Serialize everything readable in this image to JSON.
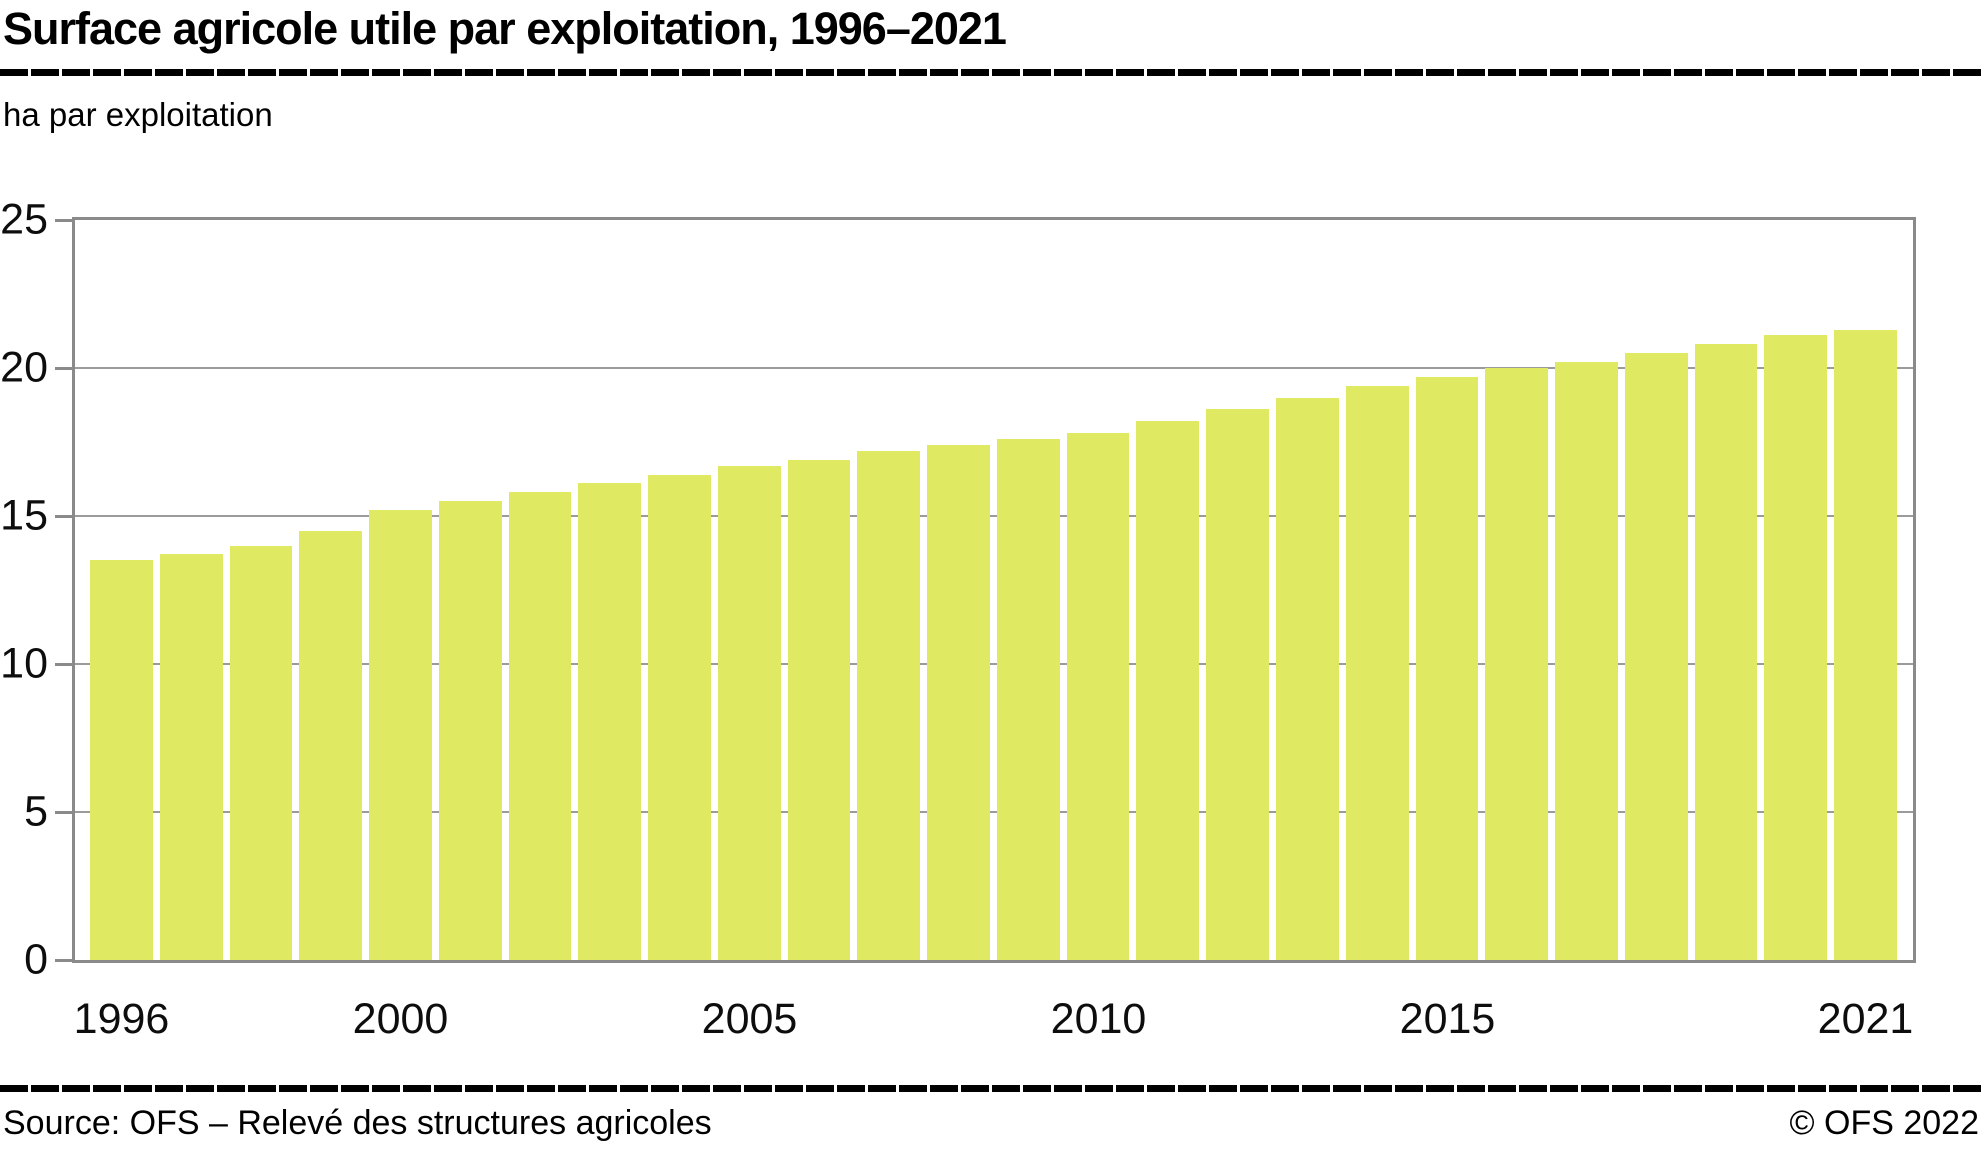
{
  "title": "Surface agricole utile par exploitation, 1996–2021",
  "unit_label": "ha par exploitation",
  "footer": {
    "source": "Source: OFS – Relevé des structures agricoles",
    "copyright": "© OFS 2022"
  },
  "colors": {
    "bar": "#dfe962",
    "axis_frame": "#8a8a8a",
    "gridline": "#9b9b9b",
    "text": "#000000",
    "separator_rule": "#000000"
  },
  "chart_data": {
    "type": "bar",
    "title": "Surface agricole utile par exploitation, 1996–2021",
    "xlabel": "",
    "ylabel": "ha par exploitation",
    "ylim": [
      0,
      25
    ],
    "yticks": [
      0,
      5,
      10,
      15,
      20,
      25
    ],
    "grid": true,
    "legend": false,
    "x_axis_shown_labels": [
      "1996",
      "2000",
      "2005",
      "2010",
      "2015",
      "2021"
    ],
    "categories": [
      1996,
      1997,
      1998,
      1999,
      2000,
      2001,
      2002,
      2003,
      2004,
      2005,
      2006,
      2007,
      2008,
      2009,
      2010,
      2011,
      2012,
      2013,
      2014,
      2015,
      2016,
      2017,
      2018,
      2019,
      2020,
      2021
    ],
    "values": [
      13.5,
      13.7,
      14.0,
      14.5,
      15.2,
      15.5,
      15.8,
      16.1,
      16.4,
      16.7,
      16.9,
      17.2,
      17.4,
      17.6,
      17.8,
      18.2,
      18.6,
      19.0,
      19.4,
      19.7,
      20.0,
      20.2,
      20.5,
      20.8,
      21.1,
      21.3
    ]
  }
}
